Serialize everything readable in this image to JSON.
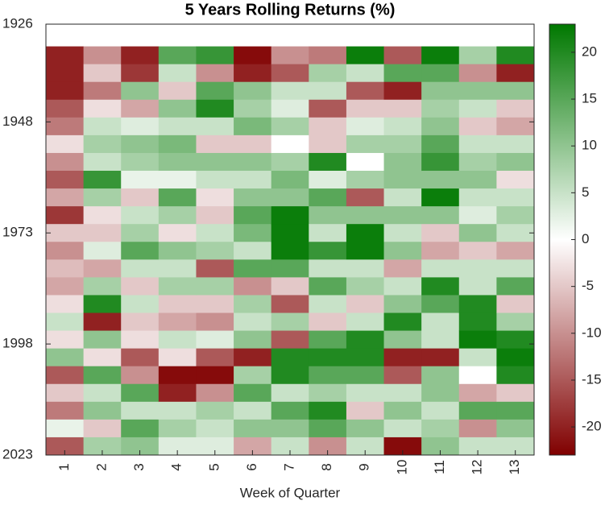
{
  "chart_data": {
    "type": "heatmap",
    "title": "5 Years Rolling Returns (%)",
    "xlabel": "Week of Quarter",
    "categories": [
      "1",
      "2",
      "3",
      "4",
      "5",
      "6",
      "7",
      "8",
      "9",
      "10",
      "11",
      "12",
      "13"
    ],
    "y": [
      1931,
      1935,
      1939,
      1943,
      1947,
      1951,
      1955,
      1959,
      1963,
      1967,
      1971,
      1975,
      1979,
      1983,
      1987,
      1991,
      1995,
      1999,
      2003,
      2007,
      2011,
      2015,
      2019
    ],
    "ylim": [
      1926,
      2023
    ],
    "yticks": [
      1926,
      1948,
      1973,
      1998,
      2023
    ],
    "z": [
      [
        -20,
        -20,
        -20,
        -15,
        -12,
        -3,
        -10,
        -15,
        -8,
        -18,
        -5,
        -10,
        -6,
        -8,
        -3,
        5,
        -3,
        10,
        -15,
        -5,
        -12,
        2,
        -15
      ],
      [
        -10,
        -5,
        -12,
        -3,
        5,
        8,
        5,
        18,
        8,
        -3,
        -5,
        3,
        -8,
        8,
        20,
        -20,
        10,
        -3,
        15,
        5,
        10,
        -5,
        8
      ],
      [
        -20,
        -18,
        10,
        -8,
        3,
        10,
        8,
        2,
        -5,
        5,
        8,
        15,
        5,
        -5,
        5,
        -5,
        -3,
        -15,
        -10,
        15,
        5,
        15,
        10
      ],
      [
        15,
        5,
        -5,
        10,
        5,
        12,
        10,
        2,
        15,
        8,
        -3,
        10,
        5,
        8,
        -5,
        -8,
        5,
        -3,
        -22,
        -20,
        5,
        8,
        3
      ],
      [
        18,
        -10,
        15,
        20,
        5,
        -5,
        10,
        5,
        -3,
        -5,
        5,
        8,
        -15,
        8,
        -5,
        -10,
        3,
        -15,
        -22,
        -10,
        8,
        5,
        3
      ],
      [
        -22,
        -20,
        10,
        8,
        12,
        -5,
        10,
        5,
        10,
        15,
        12,
        5,
        15,
        -10,
        8,
        5,
        10,
        -20,
        8,
        15,
        5,
        10,
        -8
      ],
      [
        -10,
        -15,
        5,
        3,
        8,
        0,
        8,
        12,
        10,
        22,
        22,
        22,
        15,
        -5,
        -15,
        8,
        -15,
        20,
        20,
        5,
        15,
        10,
        5
      ],
      [
        -12,
        8,
        5,
        -15,
        -5,
        -5,
        20,
        3,
        15,
        10,
        5,
        18,
        5,
        15,
        5,
        -5,
        15,
        20,
        15,
        8,
        20,
        15,
        -10
      ],
      [
        22,
        5,
        -15,
        -5,
        3,
        8,
        0,
        8,
        -15,
        10,
        22,
        22,
        5,
        8,
        -5,
        5,
        20,
        20,
        15,
        5,
        -5,
        10,
        5
      ],
      [
        -15,
        15,
        -20,
        -5,
        5,
        8,
        10,
        10,
        5,
        10,
        5,
        10,
        -8,
        5,
        10,
        20,
        10,
        -20,
        -15,
        5,
        10,
        5,
        -22
      ],
      [
        22,
        15,
        10,
        8,
        10,
        15,
        18,
        10,
        22,
        10,
        -5,
        -8,
        5,
        20,
        15,
        5,
        5,
        -20,
        10,
        10,
        5,
        8,
        10
      ],
      [
        8,
        -10,
        10,
        5,
        -5,
        5,
        8,
        10,
        5,
        3,
        10,
        -5,
        5,
        5,
        20,
        20,
        22,
        5,
        0,
        -8,
        15,
        -10,
        5
      ],
      [
        20,
        -20,
        10,
        -5,
        -8,
        5,
        10,
        -3,
        5,
        8,
        5,
        -8,
        5,
        15,
        -5,
        8,
        20,
        22,
        20,
        -5,
        15,
        10,
        5
      ]
    ],
    "clim": [
      -23,
      23
    ],
    "cticks": [
      -20,
      -15,
      -10,
      -5,
      0,
      5,
      10,
      15,
      20
    ],
    "colormap": [
      "#800000",
      "#ffffff",
      "#007800"
    ]
  }
}
